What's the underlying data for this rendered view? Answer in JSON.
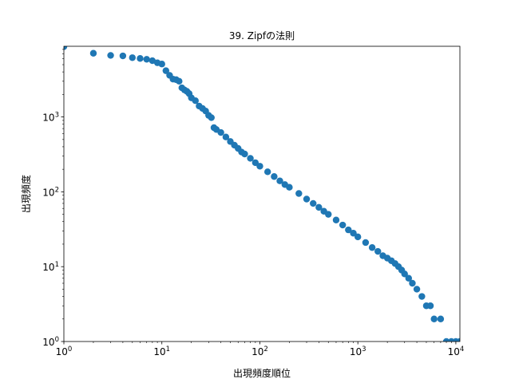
{
  "chart_data": {
    "type": "scatter",
    "title": "39. Zipfの法則",
    "xlabel": "出現頻度順位",
    "ylabel": "出現頻度",
    "xscale": "log",
    "yscale": "log",
    "xlim": [
      1,
      11000
    ],
    "ylim": [
      1,
      8800
    ],
    "grid": false,
    "marker_color": "#1f77b4",
    "x_ticks": [
      {
        "base": "10",
        "exp": "0"
      },
      {
        "base": "10",
        "exp": "1"
      },
      {
        "base": "10",
        "exp": "2"
      },
      {
        "base": "10",
        "exp": "3"
      },
      {
        "base": "10",
        "exp": "4"
      }
    ],
    "y_ticks": [
      {
        "base": "10",
        "exp": "0"
      },
      {
        "base": "10",
        "exp": "1"
      },
      {
        "base": "10",
        "exp": "2"
      },
      {
        "base": "10",
        "exp": "3"
      }
    ],
    "points": [
      [
        1,
        8700
      ],
      [
        2,
        7100
      ],
      [
        3,
        6650
      ],
      [
        4,
        6550
      ],
      [
        5,
        6200
      ],
      [
        6,
        6050
      ],
      [
        7,
        5900
      ],
      [
        8,
        5650
      ],
      [
        9,
        5300
      ],
      [
        10,
        5100
      ],
      [
        11,
        4150
      ],
      [
        12,
        3600
      ],
      [
        13,
        3200
      ],
      [
        14,
        3150
      ],
      [
        15,
        3000
      ],
      [
        16,
        2450
      ],
      [
        17,
        2300
      ],
      [
        18,
        2200
      ],
      [
        19,
        2050
      ],
      [
        20,
        1800
      ],
      [
        22,
        1650
      ],
      [
        24,
        1400
      ],
      [
        26,
        1300
      ],
      [
        28,
        1200
      ],
      [
        30,
        1050
      ],
      [
        32,
        980
      ],
      [
        34,
        720
      ],
      [
        36,
        680
      ],
      [
        40,
        620
      ],
      [
        45,
        540
      ],
      [
        50,
        470
      ],
      [
        55,
        420
      ],
      [
        60,
        380
      ],
      [
        65,
        340
      ],
      [
        70,
        320
      ],
      [
        80,
        280
      ],
      [
        90,
        245
      ],
      [
        100,
        220
      ],
      [
        120,
        185
      ],
      [
        140,
        160
      ],
      [
        160,
        140
      ],
      [
        180,
        125
      ],
      [
        200,
        115
      ],
      [
        250,
        95
      ],
      [
        300,
        80
      ],
      [
        350,
        70
      ],
      [
        400,
        62
      ],
      [
        450,
        55
      ],
      [
        500,
        50
      ],
      [
        600,
        42
      ],
      [
        700,
        36
      ],
      [
        800,
        31
      ],
      [
        900,
        28
      ],
      [
        1000,
        25
      ],
      [
        1200,
        21
      ],
      [
        1400,
        18
      ],
      [
        1600,
        16
      ],
      [
        1800,
        14
      ],
      [
        2000,
        13
      ],
      [
        2200,
        12
      ],
      [
        2400,
        11
      ],
      [
        2600,
        10
      ],
      [
        2800,
        9
      ],
      [
        3000,
        8
      ],
      [
        3300,
        7
      ],
      [
        3600,
        6
      ],
      [
        4000,
        5
      ],
      [
        4500,
        4
      ],
      [
        5000,
        3
      ],
      [
        5500,
        3
      ],
      [
        6000,
        2
      ],
      [
        7000,
        2
      ],
      [
        8000,
        1
      ],
      [
        9000,
        1
      ],
      [
        10000,
        1
      ],
      [
        11000,
        1
      ]
    ]
  }
}
